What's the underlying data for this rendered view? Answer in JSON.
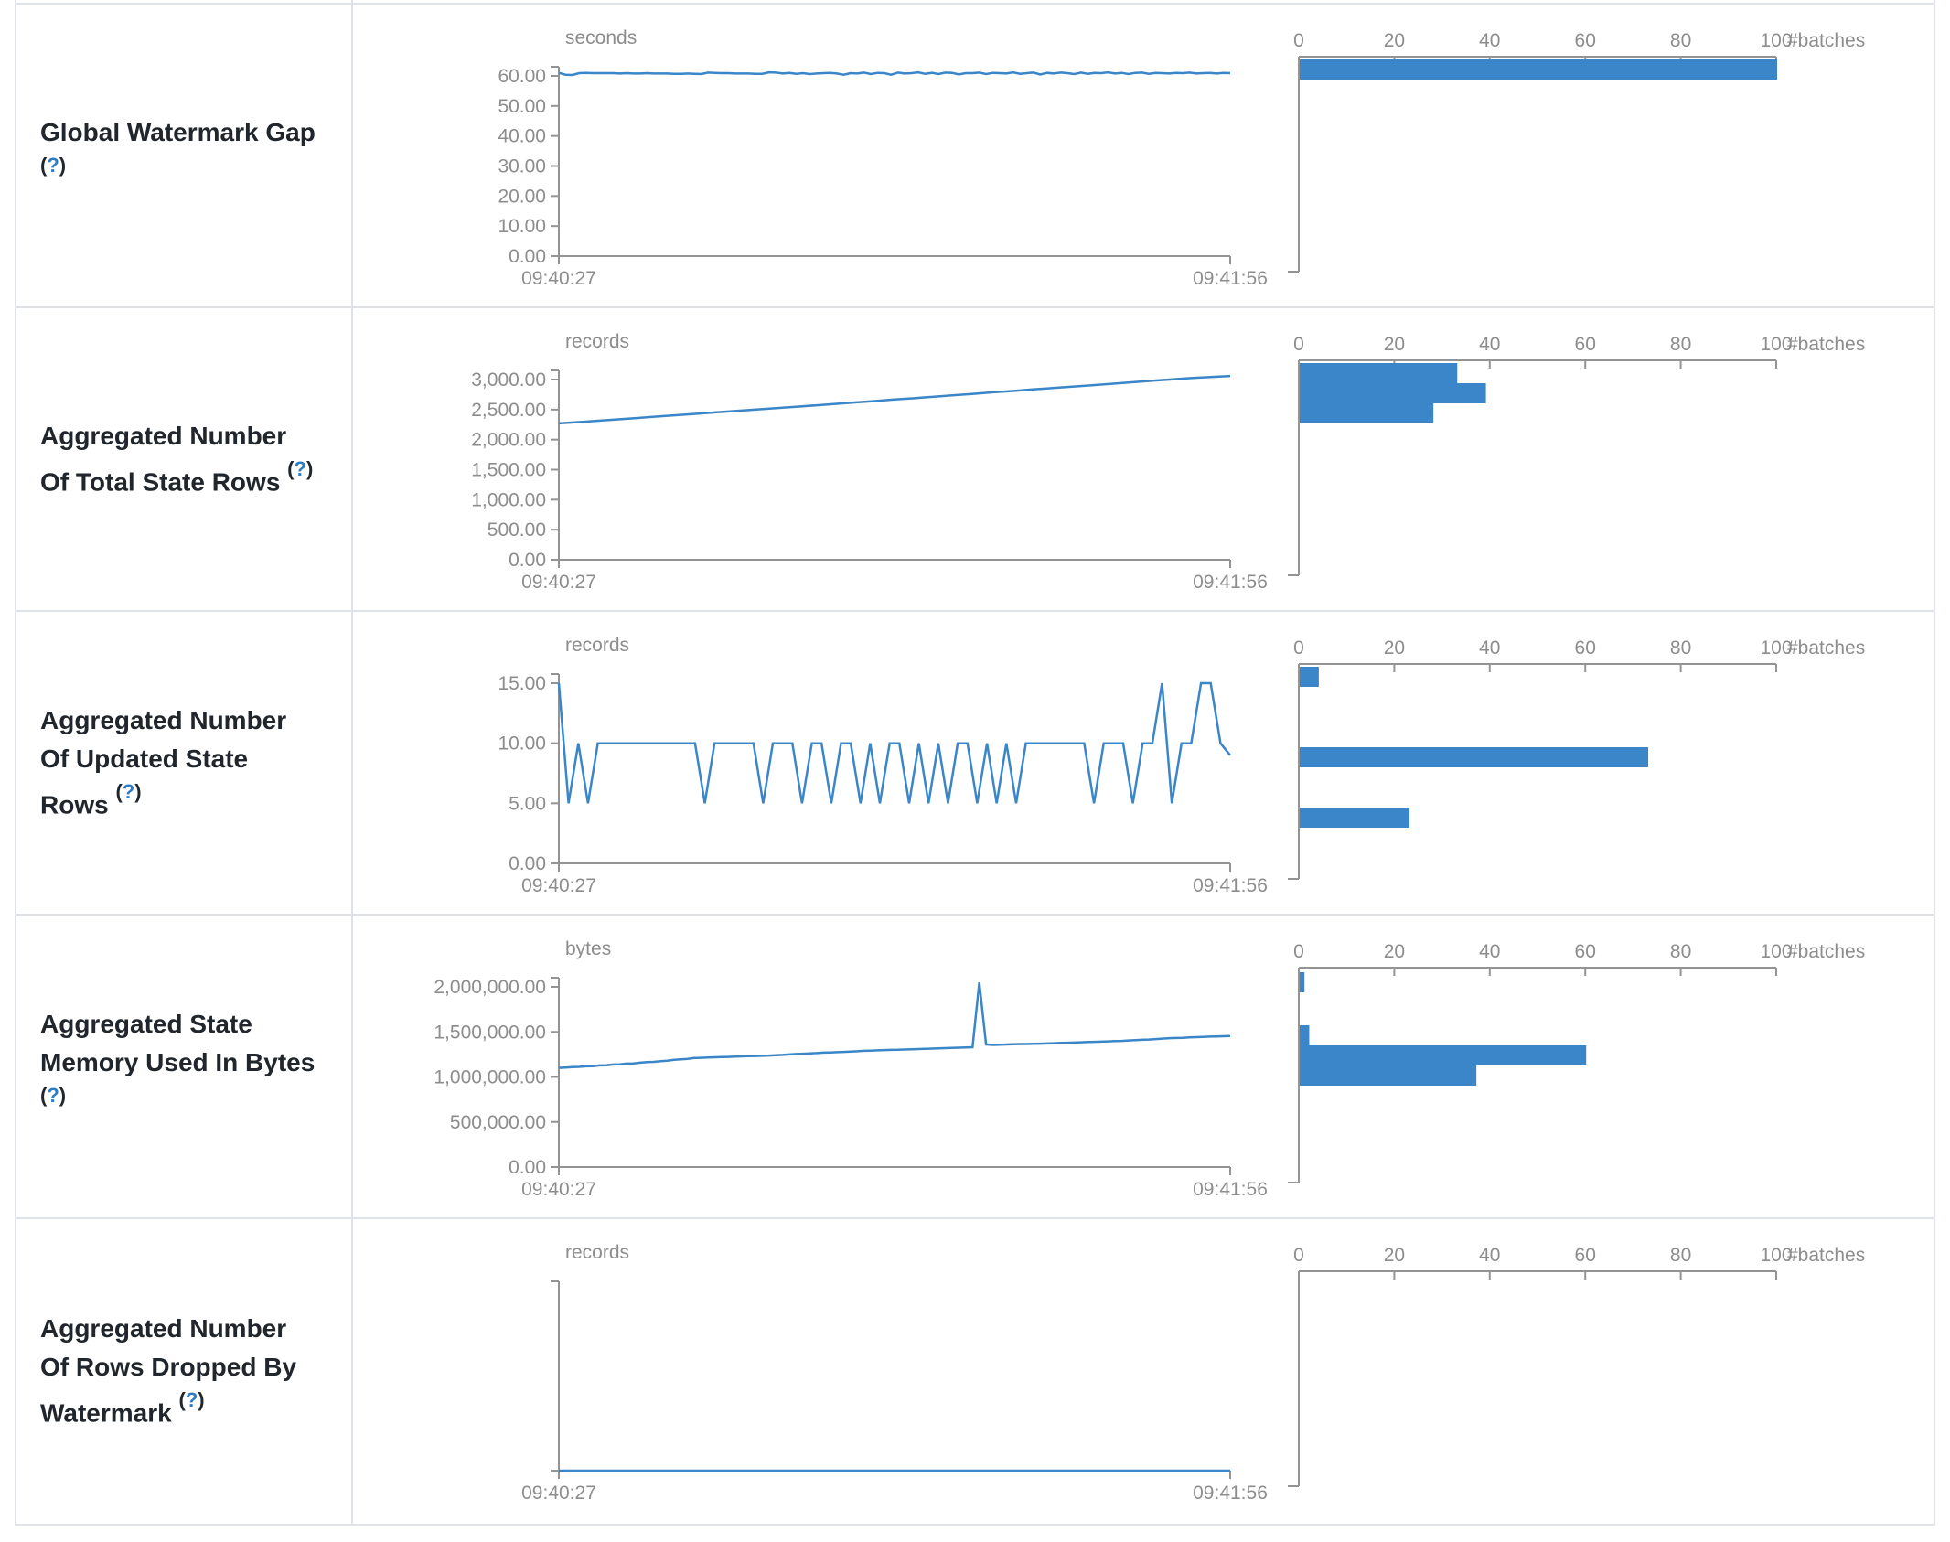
{
  "page": {
    "background": "#ffffff",
    "accent_blue": "#3a86c8",
    "axis_gray": "#949494",
    "text_gray": "#8d8d8d",
    "border_gray": "#dfe3e8",
    "label_color": "#20262c",
    "help_blue": "#2e7cc3"
  },
  "rows": [
    {
      "label": "Global Watermark Gap",
      "help": {
        "open": "(",
        "q": "?",
        "close": ")"
      }
    },
    {
      "label": "Aggregated Number Of Total State Rows",
      "help": {
        "open": "(",
        "q": "?",
        "close": ")"
      }
    },
    {
      "label": "Aggregated Number Of Updated State Rows",
      "help": {
        "open": "(",
        "q": "?",
        "close": ")"
      }
    },
    {
      "label": "Aggregated State Memory Used In Bytes",
      "help": {
        "open": "(",
        "q": "?",
        "close": ")"
      }
    },
    {
      "label": "Aggregated Number Of Rows Dropped By Watermark",
      "help": {
        "open": "(",
        "q": "?",
        "close": ")"
      }
    }
  ],
  "chart_data": [
    {
      "type": "line",
      "title": "Global Watermark Gap",
      "unit": "seconds",
      "x_start": "09:40:27",
      "x_end": "09:41:56",
      "y_ticks": [
        "60.00",
        "50.00",
        "40.00",
        "30.00",
        "20.00",
        "10.00",
        "0.00"
      ],
      "y_max": 60,
      "values": [
        61.0,
        60.4,
        60.3,
        60.9,
        61.0,
        60.9,
        60.9,
        60.9,
        60.9,
        60.8,
        60.9,
        60.8,
        60.8,
        60.9,
        60.8,
        60.8,
        60.8,
        60.7,
        60.7,
        60.8,
        60.7,
        60.6,
        61.1,
        61.0,
        60.9,
        60.9,
        60.8,
        60.8,
        60.8,
        60.7,
        60.7,
        61.2,
        61.1,
        60.8,
        61.0,
        60.7,
        60.9,
        60.6,
        60.8,
        60.9,
        61.0,
        60.8,
        60.4,
        60.9,
        60.8,
        61.1,
        60.6,
        61.0,
        60.9,
        60.4,
        61.1,
        60.8,
        60.9,
        61.2,
        60.7,
        61.0,
        60.6,
        61.1,
        61.0,
        60.5,
        60.9,
        60.9,
        61.1,
        60.6,
        61.0,
        60.9,
        60.8,
        61.2,
        60.7,
        60.9,
        61.1,
        60.5,
        61.0,
        60.8,
        61.1,
        60.9,
        60.6,
        61.1,
        60.7,
        61.0,
        60.9,
        61.2,
        60.8,
        61.0,
        60.6,
        61.0,
        61.1,
        60.7,
        61.0,
        60.9,
        60.8,
        61.0,
        60.9,
        61.1,
        60.8,
        60.9,
        61.0,
        60.8,
        61.0,
        60.9
      ],
      "histogram": {
        "type": "bar",
        "axis_ticks": [
          0,
          20,
          40,
          60,
          80,
          100
        ],
        "axis_label": "#batches",
        "counts": [
          100
        ],
        "bar_y": [
          60
        ]
      }
    },
    {
      "type": "line",
      "title": "Aggregated Number Of Total State Rows",
      "unit": "records",
      "x_start": "09:40:27",
      "x_end": "09:41:56",
      "y_ticks": [
        "3,000.00",
        "2,500.00",
        "2,000.00",
        "1,500.00",
        "1,000.00",
        "500.00",
        "0.00"
      ],
      "y_max": 3000,
      "values": [
        2270,
        2292,
        2315,
        2338,
        2360,
        2385,
        2408,
        2430,
        2455,
        2478,
        2500,
        2524,
        2548,
        2570,
        2595,
        2620,
        2642,
        2668,
        2690,
        2715,
        2740,
        2762,
        2788,
        2810,
        2835,
        2858,
        2882,
        2905,
        2930,
        2955,
        2978,
        3002,
        3025,
        3042,
        3060
      ],
      "histogram": {
        "type": "bar",
        "axis_ticks": [
          0,
          20,
          40,
          60,
          80,
          100
        ],
        "axis_label": "#batches",
        "counts": [
          33,
          39,
          28
        ],
        "bar_y": [
          60,
          82,
          104
        ]
      }
    },
    {
      "type": "line",
      "title": "Aggregated Number Of Updated State Rows",
      "unit": "records",
      "x_start": "09:40:27",
      "x_end": "09:41:56",
      "y_ticks": [
        "15.00",
        "10.00",
        "5.00",
        "0.00"
      ],
      "y_max": 15,
      "values": [
        15,
        5,
        10,
        5,
        10,
        10,
        10,
        10,
        10,
        10,
        10,
        10,
        10,
        10,
        10,
        5,
        10,
        10,
        10,
        10,
        10,
        5,
        10,
        10,
        10,
        5,
        10,
        10,
        5,
        10,
        10,
        5,
        10,
        5,
        10,
        10,
        5,
        10,
        5,
        10,
        5,
        10,
        10,
        5,
        10,
        5,
        10,
        5,
        10,
        10,
        10,
        10,
        10,
        10,
        10,
        5,
        10,
        10,
        10,
        5,
        10,
        10,
        15,
        5,
        10,
        10,
        15,
        15,
        10,
        9
      ],
      "histogram": {
        "type": "bar",
        "axis_ticks": [
          0,
          20,
          40,
          60,
          80,
          100
        ],
        "axis_label": "#batches",
        "counts": [
          4,
          73,
          23
        ],
        "bar_y": [
          60,
          148,
          214
        ]
      }
    },
    {
      "type": "line",
      "title": "Aggregated State Memory Used In Bytes",
      "unit": "bytes",
      "x_start": "09:40:27",
      "x_end": "09:41:56",
      "y_ticks": [
        "2,000,000.00",
        "1,500,000.00",
        "1,000,000.00",
        "500,000.00",
        "0.00"
      ],
      "y_max": 2000000,
      "values": [
        1100000,
        1105000,
        1110000,
        1112000,
        1118000,
        1120000,
        1128000,
        1130000,
        1138000,
        1140000,
        1148000,
        1150000,
        1158000,
        1165000,
        1168000,
        1175000,
        1180000,
        1190000,
        1195000,
        1200000,
        1210000,
        1212000,
        1215000,
        1218000,
        1220000,
        1222000,
        1225000,
        1228000,
        1230000,
        1232000,
        1235000,
        1238000,
        1242000,
        1245000,
        1250000,
        1255000,
        1258000,
        1262000,
        1265000,
        1270000,
        1272000,
        1275000,
        1278000,
        1282000,
        1285000,
        1290000,
        1292000,
        1295000,
        1298000,
        1300000,
        1302000,
        1305000,
        1308000,
        1310000,
        1312000,
        1315000,
        1318000,
        1320000,
        1322000,
        1325000,
        1328000,
        1330000,
        2050000,
        1360000,
        1355000,
        1358000,
        1360000,
        1362000,
        1365000,
        1365000,
        1368000,
        1370000,
        1372000,
        1375000,
        1378000,
        1380000,
        1382000,
        1385000,
        1388000,
        1390000,
        1392000,
        1395000,
        1398000,
        1400000,
        1405000,
        1408000,
        1412000,
        1415000,
        1420000,
        1425000,
        1430000,
        1432000,
        1435000,
        1440000,
        1442000,
        1445000,
        1448000,
        1450000,
        1452000,
        1455000
      ],
      "histogram": {
        "type": "bar",
        "axis_ticks": [
          0,
          20,
          40,
          60,
          80,
          100
        ],
        "axis_label": "#batches",
        "counts": [
          1,
          2,
          60,
          37
        ],
        "bar_y": [
          62,
          120,
          142,
          164
        ]
      }
    },
    {
      "type": "line",
      "title": "Aggregated Number Of Rows Dropped By Watermark",
      "unit": "records",
      "x_start": "09:40:27",
      "x_end": "09:41:56",
      "y_ticks": [],
      "y_max": 1,
      "values": [
        0,
        0,
        0,
        0,
        0,
        0,
        0,
        0,
        0,
        0,
        0
      ],
      "histogram": {
        "type": "bar",
        "axis_ticks": [
          0,
          20,
          40,
          60,
          80,
          100
        ],
        "axis_label": "#batches",
        "counts": [],
        "bar_y": []
      }
    }
  ]
}
